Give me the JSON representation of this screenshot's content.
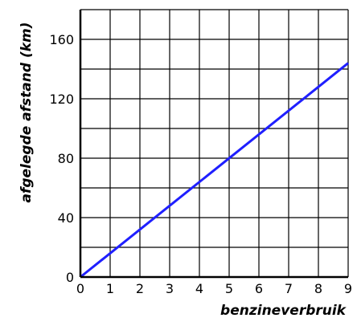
{
  "chart_data": {
    "type": "line",
    "xlabel": "benzineverbruik",
    "ylabel": "afgelegde afstand (km)",
    "xlim": [
      0,
      9
    ],
    "ylim": [
      0,
      180
    ],
    "x_ticks": [
      0,
      1,
      2,
      3,
      4,
      5,
      6,
      7,
      8,
      9
    ],
    "y_ticks": [
      0,
      40,
      80,
      120,
      160
    ],
    "grid": true,
    "series": [
      {
        "x": [
          0,
          9
        ],
        "y": [
          0,
          144
        ],
        "color": "#1f1fff"
      }
    ]
  }
}
